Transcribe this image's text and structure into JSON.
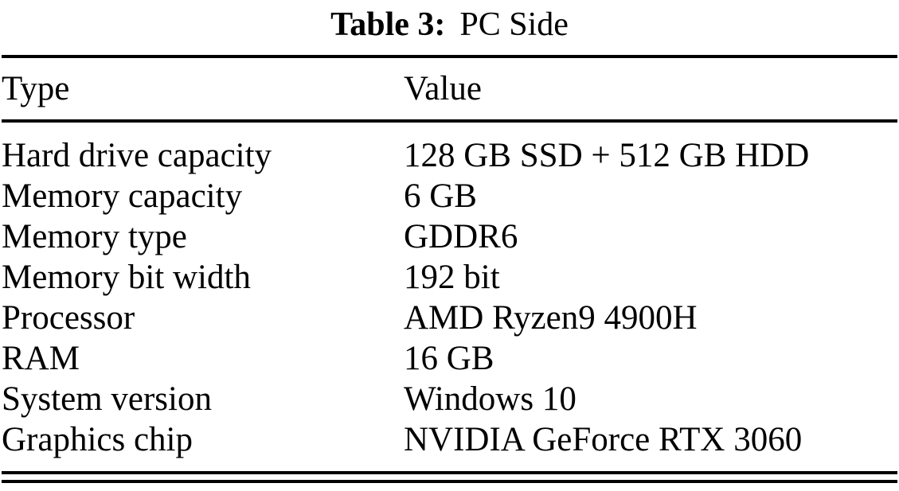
{
  "caption": {
    "label": "Table 3:",
    "title": "PC Side"
  },
  "table": {
    "headers": [
      "Type",
      "Value"
    ],
    "rows": [
      [
        "Hard drive capacity",
        "128 GB SSD + 512 GB HDD"
      ],
      [
        "Memory capacity",
        "6 GB"
      ],
      [
        "Memory type",
        "GDDR6"
      ],
      [
        "Memory bit width",
        "192 bit"
      ],
      [
        "Processor",
        "AMD Ryzen9 4900H"
      ],
      [
        "RAM",
        "16 GB"
      ],
      [
        "System version",
        "Windows 10"
      ],
      [
        "Graphics chip",
        "NVIDIA GeForce RTX 3060"
      ]
    ]
  },
  "chart_data": {
    "type": "table",
    "title": "Table 3: PC Side",
    "columns": [
      "Type",
      "Value"
    ],
    "rows": [
      {
        "type": "Hard drive capacity",
        "value": "128 GB SSD + 512 GB HDD"
      },
      {
        "type": "Memory capacity",
        "value": "6 GB"
      },
      {
        "type": "Memory type",
        "value": "GDDR6"
      },
      {
        "type": "Memory bit width",
        "value": "192 bit"
      },
      {
        "type": "Processor",
        "value": "AMD Ryzen9 4900H"
      },
      {
        "type": "RAM",
        "value": "16 GB"
      },
      {
        "type": "System version",
        "value": "Windows 10"
      },
      {
        "type": "Graphics chip",
        "value": "NVIDIA GeForce RTX 3060"
      }
    ]
  }
}
